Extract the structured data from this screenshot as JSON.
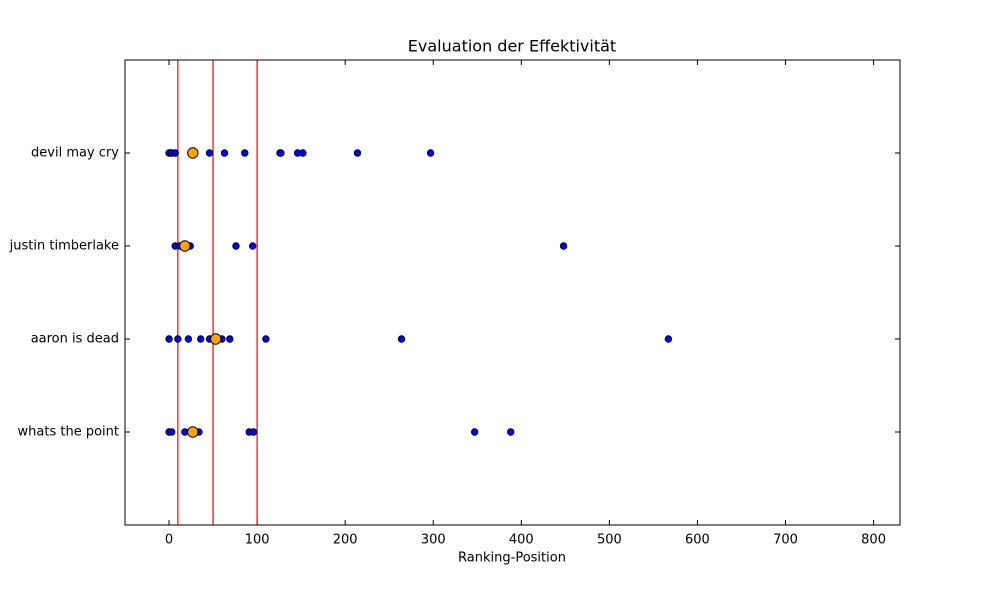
{
  "chart_data": {
    "type": "strip",
    "title": "Evaluation der Effektivität",
    "x_label": "Ranking-Position",
    "categories": [
      "whats the point",
      "aaron is dead",
      "justin timberlake",
      "devil may cry"
    ],
    "points": [
      [
        0,
        3,
        18,
        24,
        34,
        91,
        96,
        347,
        388
      ],
      [
        0,
        10,
        22,
        36,
        46,
        52,
        60,
        69,
        110,
        264,
        567
      ],
      [
        7,
        12,
        18,
        24,
        76,
        95,
        448
      ],
      [
        0,
        1,
        3,
        7,
        46,
        63,
        86,
        126,
        127,
        146,
        152,
        214,
        297
      ]
    ],
    "means": [
      27,
      53,
      18,
      27
    ],
    "point_color": "#0000ff",
    "mean_color": "#ffa500",
    "vlines": [
      10,
      50,
      100
    ],
    "vline_color": "#ff0000",
    "xlim": [
      -50,
      830
    ],
    "xticks": [
      0,
      100,
      200,
      300,
      400,
      500,
      600,
      700,
      800
    ],
    "ylim": [
      0,
      5
    ]
  }
}
